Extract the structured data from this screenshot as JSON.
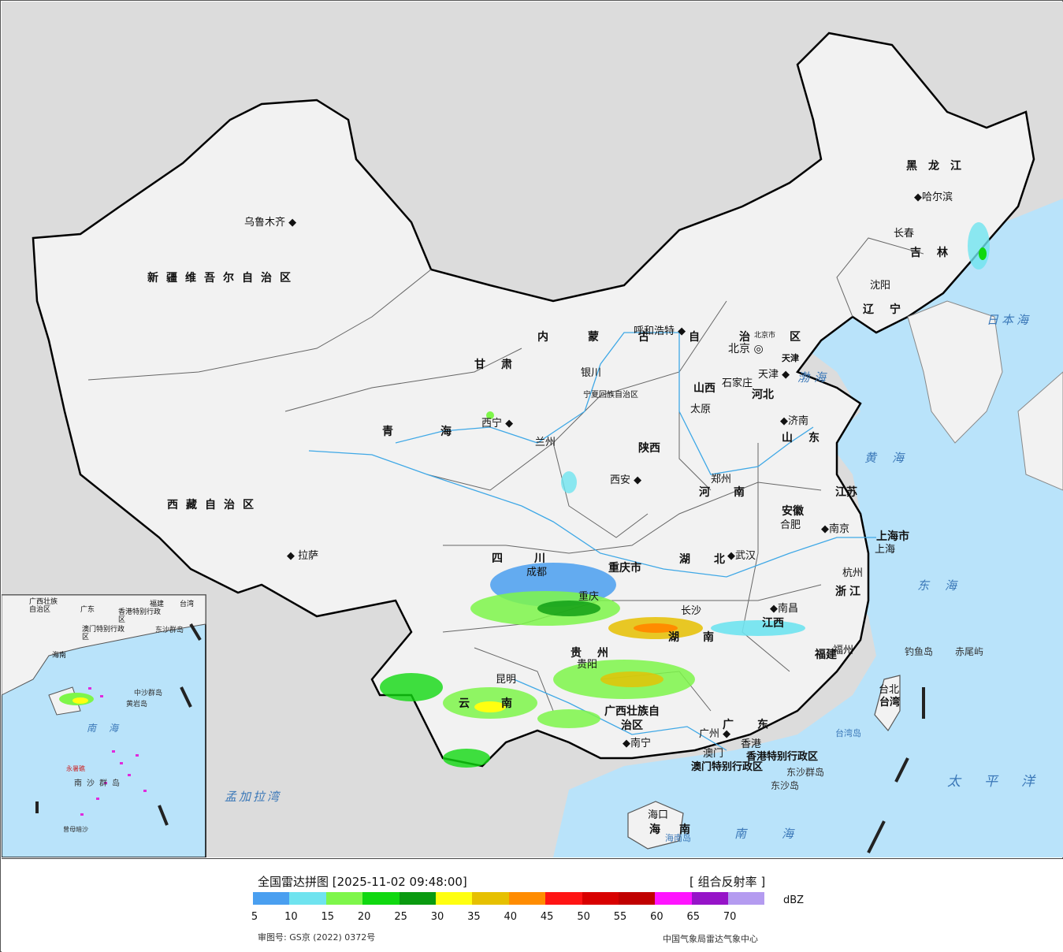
{
  "legend": {
    "title": "全国雷达拼图 [2025-11-02 09:48:00]",
    "product": "[ 组合反射率 ]",
    "unit": "dBZ",
    "ticks": [
      "5",
      "10",
      "15",
      "20",
      "25",
      "30",
      "35",
      "40",
      "45",
      "50",
      "55",
      "60",
      "65",
      "70"
    ],
    "colors": [
      "#4a9ff0",
      "#6fe3ef",
      "#7ef64a",
      "#10d810",
      "#0a9a10",
      "#ffff10",
      "#e6c000",
      "#ff8c00",
      "#ff1414",
      "#d80000",
      "#c00000",
      "#ff14ff",
      "#9614c8",
      "#b49bf0"
    ],
    "approval": "审图号: GS京 (2022) 0372号",
    "agency": "中国气象局雷达气象中心"
  },
  "map": {
    "colors": {
      "land": "#f2f2f2",
      "outside": "#dcdcdc",
      "sea": "#b9e3fa",
      "border": "#000000",
      "river": "#3fa8e6"
    },
    "provinces": [
      "新疆维吾尔自治区",
      "西藏自治区",
      "青海",
      "甘肃",
      "内蒙古自治区",
      "黑龙江",
      "吉林",
      "辽宁",
      "河北",
      "山西",
      "陕西",
      "四川",
      "重庆市",
      "云南",
      "贵州",
      "广西壮族自治区",
      "广东",
      "湖南",
      "湖北",
      "江西",
      "福建",
      "浙江",
      "江苏",
      "安徽",
      "山东",
      "河南",
      "宁夏回族自治区",
      "台湾",
      "海南",
      "上海市",
      "北京市",
      "天津",
      "香港特别行政区",
      "澳门特别行政区"
    ],
    "cities": [
      "乌鲁木齐",
      "拉萨",
      "西宁",
      "兰州",
      "银川",
      "呼和浩特",
      "北京",
      "天津",
      "石家庄",
      "太原",
      "济南",
      "郑州",
      "西安",
      "成都",
      "重庆",
      "贵阳",
      "昆明",
      "南宁",
      "广州",
      "香港",
      "澳门",
      "海口",
      "长沙",
      "武汉",
      "南昌",
      "福州",
      "台北",
      "杭州",
      "上海",
      "南京",
      "合肥",
      "沈阳",
      "长春",
      "哈尔滨"
    ],
    "seas": [
      "日本海",
      "渤海",
      "黄海",
      "东海",
      "太平洋",
      "南海",
      "孟加拉湾"
    ],
    "islands": [
      "钓鱼岛",
      "赤尾屿",
      "台湾岛",
      "海南岛",
      "东沙群岛",
      "东沙岛"
    ],
    "inset": {
      "labels": [
        "广西壮族自治区",
        "广东",
        "福建",
        "台湾",
        "海南",
        "南海",
        "香港特别行政区",
        "澳门特别行政区",
        "东沙群岛",
        "中沙群岛",
        "黄岩岛",
        "永暑礁",
        "南沙群岛",
        "曾母暗沙"
      ]
    }
  }
}
